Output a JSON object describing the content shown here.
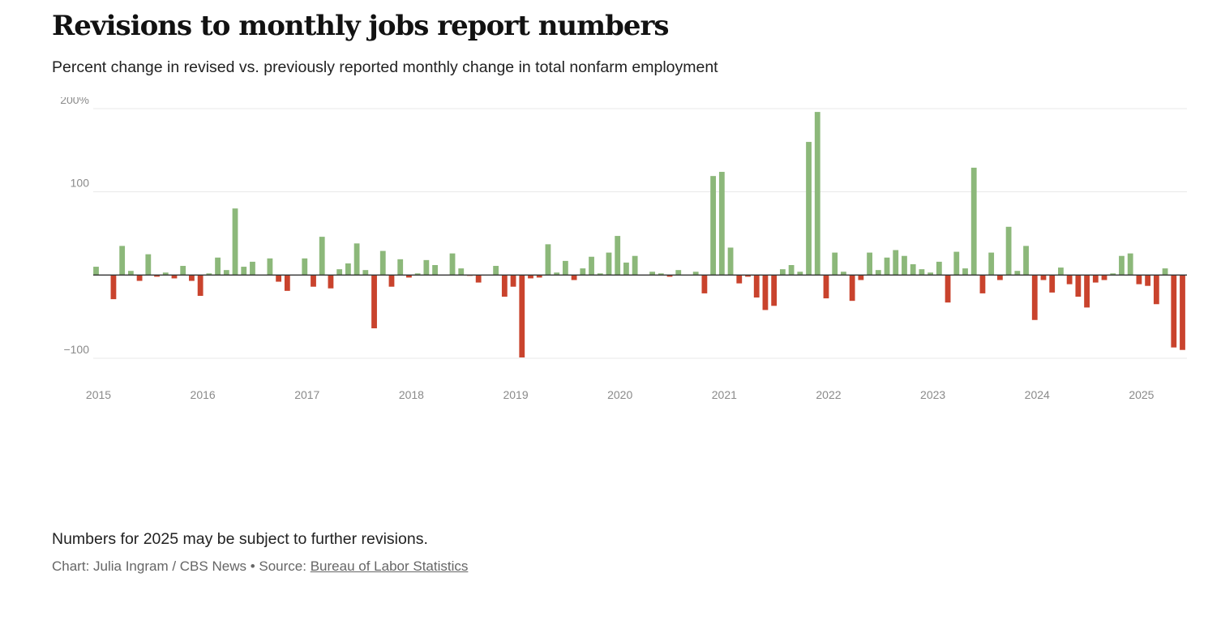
{
  "title": "Revisions to monthly jobs report numbers",
  "subtitle": "Percent change in revised vs. previously reported monthly change in total nonfarm employment",
  "note": "Numbers for 2025 may be subject to further revisions.",
  "credit": {
    "prefix": "Chart: Julia Ingram / CBS News",
    "separator": "•",
    "source_label": "Source:",
    "source_link": "Bureau of Labor Statistics"
  },
  "colors": {
    "positive": "#8cb87a",
    "negative": "#c9432d",
    "axis": "#333333",
    "grid": "#e8e8e8",
    "tick": "#8a8a8a"
  },
  "chart_data": {
    "type": "bar",
    "xlabel": "",
    "ylabel": "",
    "ylim": [
      -100,
      200
    ],
    "y_ticks": [
      {
        "value": 200,
        "label": "200%"
      },
      {
        "value": 100,
        "label": "100"
      },
      {
        "value": -100,
        "label": "−100"
      }
    ],
    "x_ticks": [
      "2015",
      "2016",
      "2017",
      "2018",
      "2019",
      "2020",
      "2021",
      "2022",
      "2023",
      "2024",
      "2025"
    ],
    "start": "2015-01",
    "frequency": "monthly",
    "values": [
      10,
      0,
      -29,
      35,
      5,
      -7,
      25,
      -2,
      3,
      -4,
      11,
      -7,
      -25,
      2,
      21,
      6,
      80,
      10,
      16,
      0,
      20,
      -8,
      -19,
      0,
      20,
      -14,
      46,
      -16,
      7,
      14,
      38,
      6,
      -64,
      29,
      -14,
      19,
      -3,
      2,
      18,
      12,
      0,
      26,
      8,
      -1,
      -9,
      0,
      11,
      -26,
      -14,
      -99,
      -4,
      -3,
      37,
      3,
      17,
      -6,
      8,
      22,
      2,
      27,
      47,
      15,
      23,
      0,
      4,
      2,
      -2,
      6,
      0,
      4,
      -22,
      119,
      124,
      33,
      -10,
      -2,
      -27,
      -42,
      -37,
      7,
      12,
      4,
      160,
      196,
      -28,
      27,
      4,
      -31,
      -6,
      27,
      6,
      21,
      30,
      23,
      13,
      7,
      3,
      16,
      -33,
      28,
      8,
      129,
      -22,
      27,
      -6,
      58,
      5,
      35,
      -54,
      -6,
      -21,
      9,
      -11,
      -26,
      -39,
      -9,
      -6,
      2,
      23,
      26,
      -11,
      -13,
      -35,
      8,
      -87,
      -90
    ]
  }
}
